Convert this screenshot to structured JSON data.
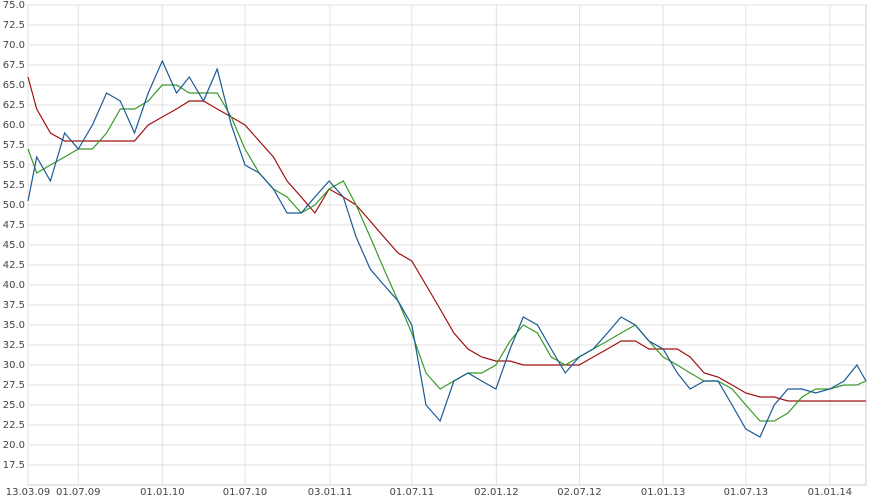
{
  "chart_data": {
    "type": "line",
    "x": [
      "2009-03-13",
      "2009-04-01",
      "2009-05-01",
      "2009-06-01",
      "2009-07-01",
      "2009-08-01",
      "2009-09-01",
      "2009-10-01",
      "2009-11-01",
      "2009-12-01",
      "2010-01-01",
      "2010-02-01",
      "2010-03-01",
      "2010-04-01",
      "2010-05-01",
      "2010-06-01",
      "2010-07-01",
      "2010-08-01",
      "2010-09-01",
      "2010-10-01",
      "2010-11-01",
      "2010-12-01",
      "2011-01-01",
      "2011-02-01",
      "2011-03-01",
      "2011-04-01",
      "2011-05-01",
      "2011-06-01",
      "2011-07-01",
      "2011-08-01",
      "2011-09-01",
      "2011-10-01",
      "2011-11-01",
      "2011-12-01",
      "2012-01-01",
      "2012-02-01",
      "2012-03-01",
      "2012-04-01",
      "2012-05-01",
      "2012-06-01",
      "2012-07-01",
      "2012-08-01",
      "2012-09-01",
      "2012-10-01",
      "2012-11-01",
      "2012-12-01",
      "2013-01-01",
      "2013-02-01",
      "2013-03-01",
      "2013-04-01",
      "2013-05-01",
      "2013-06-01",
      "2013-07-01",
      "2013-08-01",
      "2013-09-01",
      "2013-10-01",
      "2013-11-01",
      "2013-12-01",
      "2014-01-01",
      "2014-02-01",
      "2014-03-01",
      "2014-03-21"
    ],
    "series": [
      {
        "color": "#1a5a96",
        "values": [
          50.5,
          56,
          53,
          59,
          57,
          60,
          64,
          63,
          59,
          64,
          68,
          64,
          66,
          63,
          67,
          60,
          55,
          54,
          52,
          49,
          49,
          51,
          53,
          51,
          46,
          42,
          40,
          38,
          35,
          25,
          23,
          28,
          29,
          28,
          27,
          32,
          36,
          35,
          32,
          29,
          31,
          32,
          34,
          36,
          35,
          33,
          32,
          29,
          27,
          28,
          28,
          25,
          22,
          21,
          25,
          27,
          27,
          26.5,
          27,
          28,
          30,
          28
        ]
      },
      {
        "color": "#3a9a2a",
        "values": [
          57,
          54,
          55,
          56,
          57,
          57,
          59,
          62,
          62,
          63,
          65,
          65,
          64,
          64,
          64,
          61,
          57,
          54,
          52,
          51,
          49,
          50,
          52,
          53,
          50,
          46,
          42,
          38,
          34,
          29,
          27,
          28,
          29,
          29,
          30,
          33,
          35,
          34,
          31,
          30,
          31,
          32,
          33,
          34,
          35,
          33,
          31,
          30,
          29,
          28,
          28,
          27,
          25,
          23,
          23,
          24,
          26,
          27,
          27,
          27.5,
          27.5,
          28
        ]
      },
      {
        "color": "#a01010",
        "values": [
          66,
          62,
          59,
          58,
          58,
          58,
          58,
          58,
          58,
          60,
          61,
          62,
          63,
          63,
          62,
          61,
          60,
          58,
          56,
          53,
          51,
          49,
          52,
          51,
          50,
          48,
          46,
          44,
          43,
          40,
          37,
          34,
          32,
          31,
          30.5,
          30.5,
          30,
          30,
          30,
          30,
          30,
          31,
          32,
          33,
          33,
          32,
          32,
          32,
          31,
          29,
          28.5,
          27.5,
          26.5,
          26,
          26,
          25.5,
          25.5,
          25.5,
          25.5,
          25.5,
          25.5,
          25.5
        ]
      }
    ],
    "xlim": [
      "2009-03-13",
      "2014-03-21"
    ],
    "xticks": [
      {
        "value": "2009-03-13",
        "label": "13.03.09"
      },
      {
        "value": "2009-07-01",
        "label": "01.07.09"
      },
      {
        "value": "2010-01-01",
        "label": "01.01.10"
      },
      {
        "value": "2010-07-01",
        "label": "01.07.10"
      },
      {
        "value": "2011-01-03",
        "label": "03.01.11"
      },
      {
        "value": "2011-07-01",
        "label": "01.07.11"
      },
      {
        "value": "2012-01-02",
        "label": "02.01.12"
      },
      {
        "value": "2012-07-02",
        "label": "02.07.12"
      },
      {
        "value": "2013-01-01",
        "label": "01.01.13"
      },
      {
        "value": "2013-07-01",
        "label": "01.07.13"
      },
      {
        "value": "2014-01-01",
        "label": "01.01.14"
      }
    ],
    "ylim": [
      15,
      75
    ],
    "yticks": [
      {
        "value": 17.5,
        "label": "17.5"
      },
      {
        "value": 20,
        "label": "20.0"
      },
      {
        "value": 22.5,
        "label": "22.5"
      },
      {
        "value": 25,
        "label": "25.0"
      },
      {
        "value": 27.5,
        "label": "27.5"
      },
      {
        "value": 30,
        "label": "30.0"
      },
      {
        "value": 32.5,
        "label": "32.5"
      },
      {
        "value": 35,
        "label": "35.0"
      },
      {
        "value": 37.5,
        "label": "37.5"
      },
      {
        "value": 40,
        "label": "40.0"
      },
      {
        "value": 42.5,
        "label": "42.5"
      },
      {
        "value": 45,
        "label": "45.0"
      },
      {
        "value": 47.5,
        "label": "47.5"
      },
      {
        "value": 50,
        "label": "50.0"
      },
      {
        "value": 52.5,
        "label": "52.5"
      },
      {
        "value": 55,
        "label": "55.0"
      },
      {
        "value": 57.5,
        "label": "57.5"
      },
      {
        "value": 60,
        "label": "60.0"
      },
      {
        "value": 62.5,
        "label": "62.5"
      },
      {
        "value": 65,
        "label": "65.0"
      },
      {
        "value": 67.5,
        "label": "67.5"
      },
      {
        "value": 70,
        "label": "70.0"
      },
      {
        "value": 72.5,
        "label": "72.5"
      },
      {
        "value": 75,
        "label": "75.0"
      }
    ],
    "grid": true
  }
}
